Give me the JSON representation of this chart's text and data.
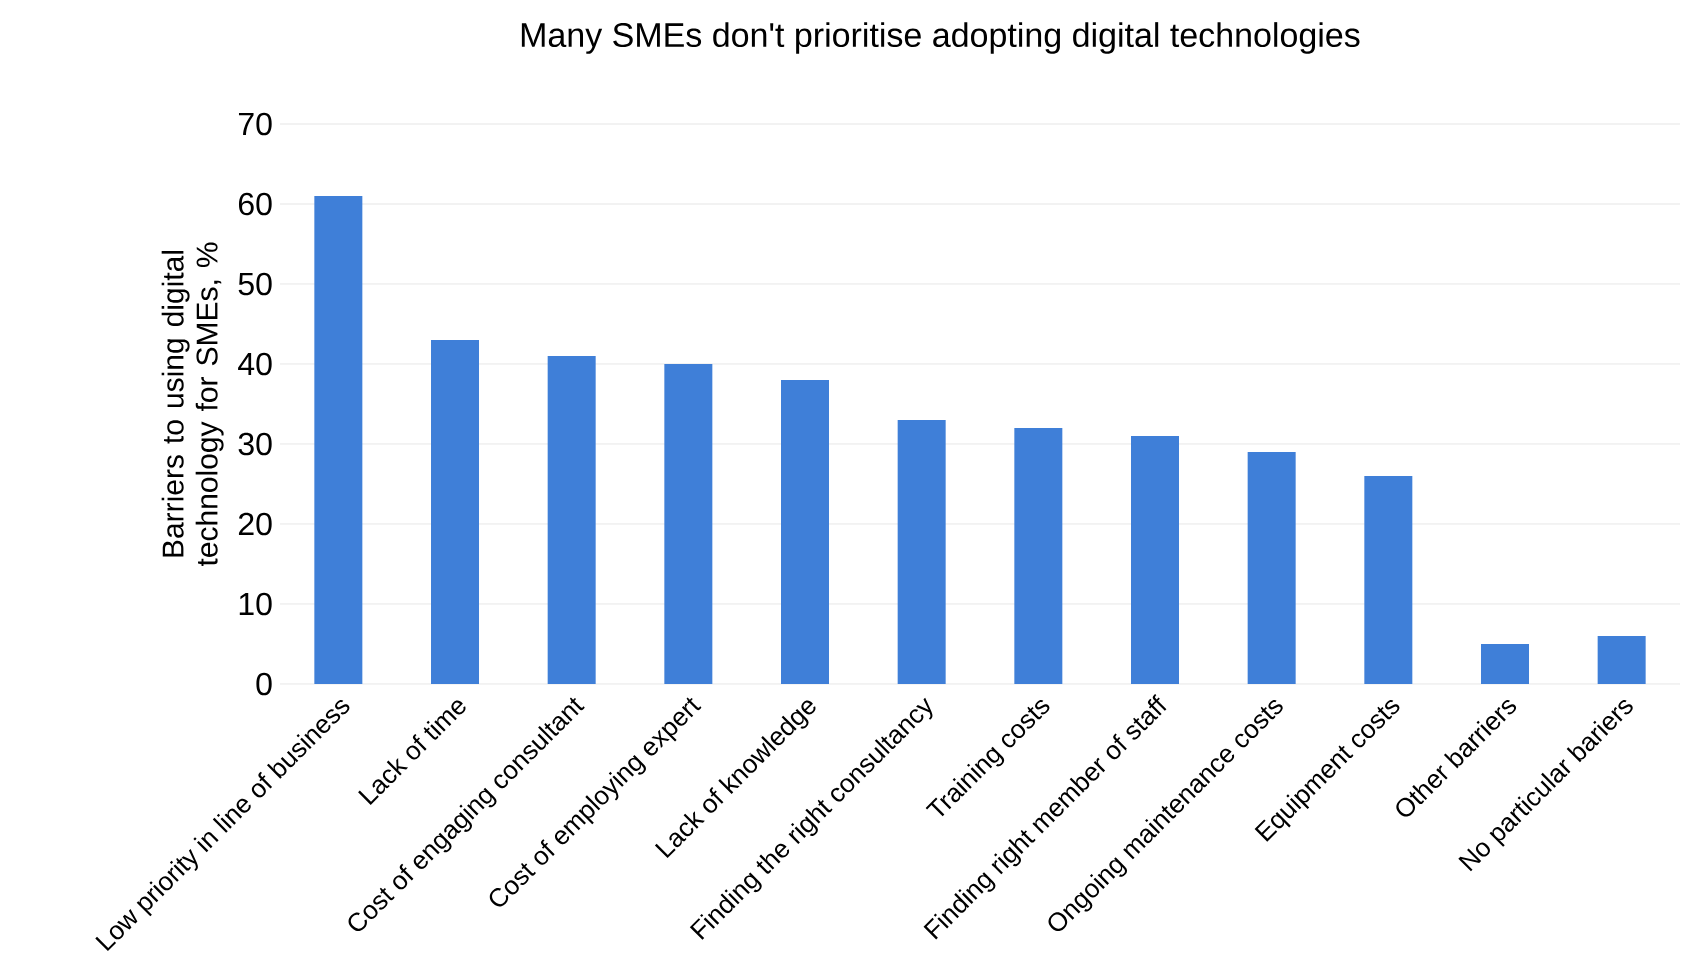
{
  "chart_data": {
    "type": "bar",
    "title": "Many SMEs don't prioritise adopting digital technologies",
    "ylabel": "Barriers to using digital technology for SMEs, %",
    "categories": [
      "Low priority in line of business",
      "Lack of time",
      "Cost of engaging consultant",
      "Cost of employing expert",
      "Lack of knowledge",
      "Finding the right consultancy",
      "Training costs",
      "Finding right member of staff",
      "Ongoing maintenance costs",
      "Equipment costs",
      "Other barriers",
      "No particular bariers"
    ],
    "values": [
      61,
      43,
      41,
      40,
      38,
      33,
      32,
      31,
      29,
      26,
      5,
      6
    ],
    "color": "#3f7fd8",
    "ylim": [
      0,
      70
    ],
    "yticks": [
      0,
      10,
      20,
      30,
      40,
      50,
      60,
      70
    ],
    "grid": "y"
  }
}
